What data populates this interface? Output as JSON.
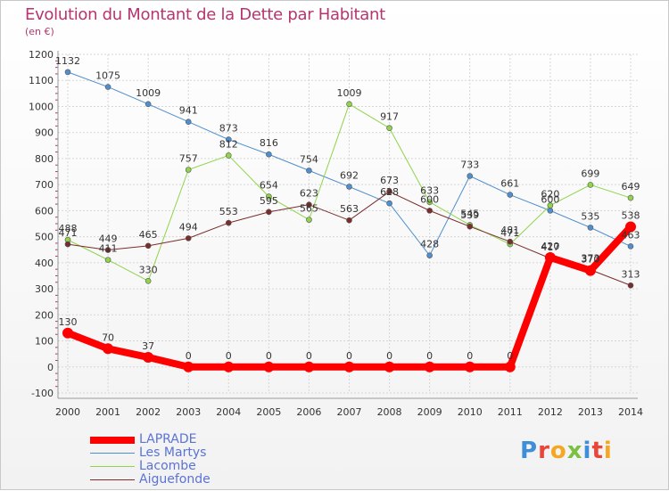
{
  "title": "Evolution du Montant de la Dette par Habitant",
  "unit": "(en €)",
  "logo": "Proxiti",
  "chart_data": {
    "type": "line",
    "title": "Evolution du Montant de la Dette par Habitant",
    "ylabel": "(en €)",
    "x": [
      "2000",
      "2001",
      "2002",
      "2003",
      "2004",
      "2005",
      "2006",
      "2007",
      "2008",
      "2009",
      "2010",
      "2011",
      "2012",
      "2013",
      "2014"
    ],
    "ylim": [
      -100,
      1200
    ],
    "yticks": [
      "-100",
      "0",
      "100",
      "200",
      "300",
      "400",
      "500",
      "600",
      "700",
      "800",
      "900",
      "1000",
      "1100",
      "1200"
    ],
    "grid": true,
    "legend_position": "bottom-left",
    "series": [
      {
        "name": "LAPRADE",
        "color": "#ff0000",
        "width": 8,
        "marker_r": 6,
        "values": [
          130,
          70,
          37,
          0,
          0,
          0,
          0,
          0,
          0,
          0,
          0,
          0,
          420,
          370,
          538
        ],
        "labels": [
          "130",
          "70",
          "37",
          "0",
          "0",
          "0",
          "0",
          "0",
          "0",
          "0",
          "0",
          "0",
          "420",
          "370",
          "538"
        ]
      },
      {
        "name": "Les Martys",
        "color": "#4f8fcf",
        "width": 1,
        "marker_r": 3,
        "values": [
          1132,
          1075,
          1009,
          941,
          873,
          816,
          754,
          692,
          628,
          428,
          733,
          661,
          600,
          535,
          463
        ],
        "labels": [
          "1132",
          "1075",
          "1009",
          "941",
          "873",
          "816",
          "754",
          "692",
          "628",
          "428",
          "733",
          "661",
          "600",
          "535",
          "463"
        ]
      },
      {
        "name": "Lacombe",
        "color": "#8fd44a",
        "width": 1,
        "marker_r": 3,
        "values": [
          488,
          411,
          330,
          757,
          812,
          654,
          565,
          1009,
          917,
          633,
          545,
          471,
          620,
          699,
          649
        ],
        "labels": [
          "488",
          "411",
          "330",
          "757",
          "812",
          "654",
          "565",
          "1009",
          "917",
          "633",
          "545",
          "471",
          "620",
          "699",
          "649"
        ]
      },
      {
        "name": "Aiguefonde",
        "color": "#7a2d2d",
        "width": 1,
        "marker_r": 3,
        "values": [
          471,
          449,
          465,
          494,
          553,
          595,
          623,
          563,
          673,
          600,
          539,
          481,
          417,
          373,
          313
        ],
        "labels": [
          "471",
          "449",
          "465",
          "494",
          "553",
          "595",
          "623",
          "563",
          "673",
          "600",
          "539",
          "481",
          "417",
          "373",
          "313"
        ]
      }
    ]
  }
}
